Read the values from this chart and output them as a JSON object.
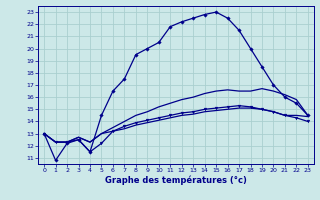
{
  "title": "Graphe des températures (°c)",
  "bg_color": "#cce8e8",
  "grid_color": "#aacfcf",
  "line_color": "#00008b",
  "x_ticks": [
    0,
    1,
    2,
    3,
    4,
    5,
    6,
    7,
    8,
    9,
    10,
    11,
    12,
    13,
    14,
    15,
    16,
    17,
    18,
    19,
    20,
    21,
    22,
    23
  ],
  "y_ticks": [
    11,
    12,
    13,
    14,
    15,
    16,
    17,
    18,
    19,
    20,
    21,
    22,
    23
  ],
  "xlim": [
    -0.5,
    23.5
  ],
  "ylim": [
    10.5,
    23.5
  ],
  "curve1_x": [
    0,
    1,
    2,
    3,
    4,
    5,
    6,
    7,
    8,
    9,
    10,
    11,
    12,
    13,
    14,
    15,
    16,
    17,
    18,
    19,
    20,
    21,
    22,
    23
  ],
  "curve1_y": [
    13.0,
    10.8,
    12.2,
    12.5,
    11.5,
    14.5,
    16.5,
    17.5,
    19.5,
    20.0,
    20.5,
    21.8,
    22.2,
    22.5,
    22.8,
    23.0,
    22.5,
    21.5,
    20.0,
    18.5,
    17.0,
    16.0,
    15.5,
    14.5
  ],
  "curve2_x": [
    0,
    1,
    2,
    3,
    4,
    5,
    6,
    7,
    8,
    9,
    10,
    11,
    12,
    13,
    14,
    15,
    16,
    17,
    18,
    19,
    20,
    21,
    22,
    23
  ],
  "curve2_y": [
    13.0,
    12.3,
    12.3,
    12.7,
    12.3,
    13.0,
    13.5,
    14.0,
    14.5,
    14.8,
    15.2,
    15.5,
    15.8,
    16.0,
    16.3,
    16.5,
    16.6,
    16.5,
    16.5,
    16.7,
    16.5,
    16.2,
    15.8,
    14.5
  ],
  "curve3_x": [
    0,
    1,
    2,
    3,
    4,
    5,
    6,
    7,
    8,
    9,
    10,
    11,
    12,
    13,
    14,
    15,
    16,
    17,
    18,
    19,
    20,
    21,
    22,
    23
  ],
  "curve3_y": [
    13.0,
    12.3,
    12.3,
    12.7,
    12.3,
    13.0,
    13.2,
    13.4,
    13.7,
    13.9,
    14.1,
    14.3,
    14.5,
    14.6,
    14.8,
    14.9,
    15.0,
    15.1,
    15.1,
    15.0,
    14.8,
    14.5,
    14.5,
    14.4
  ],
  "curve4_x": [
    0,
    1,
    2,
    3,
    4,
    5,
    6,
    7,
    8,
    9,
    10,
    11,
    12,
    13,
    14,
    15,
    16,
    17,
    18,
    19,
    20,
    21,
    22,
    23
  ],
  "curve4_y": [
    13.0,
    12.3,
    12.3,
    12.5,
    11.5,
    12.2,
    13.2,
    13.6,
    13.9,
    14.1,
    14.3,
    14.5,
    14.7,
    14.8,
    15.0,
    15.1,
    15.2,
    15.3,
    15.2,
    15.0,
    14.8,
    14.5,
    14.3,
    14.0
  ]
}
